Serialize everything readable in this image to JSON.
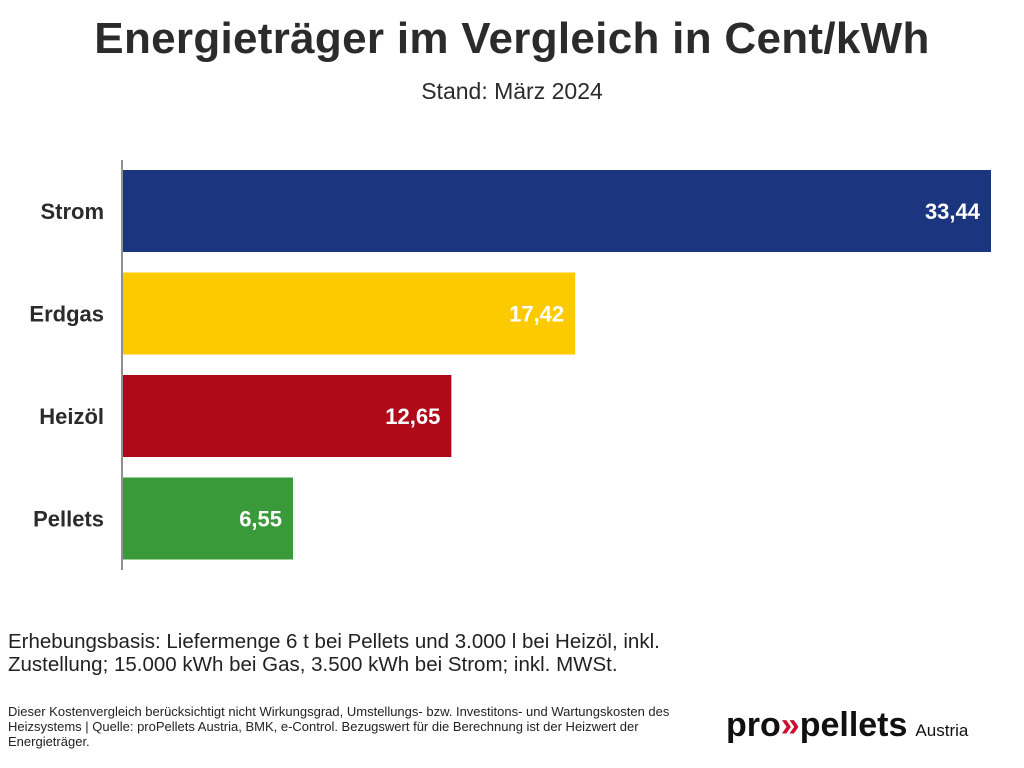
{
  "header": {
    "title": "Energieträger im Vergleich in Cent/kWh",
    "subtitle": "Stand: März 2024"
  },
  "chart_data": {
    "type": "bar",
    "orientation": "horizontal",
    "title": "Energieträger im Vergleich in Cent/kWh",
    "subtitle": "Stand: März 2024",
    "categories": [
      "Strom",
      "Erdgas",
      "Heizöl",
      "Pellets"
    ],
    "values": [
      33.44,
      17.42,
      12.65,
      6.55
    ],
    "value_labels": [
      "33,44",
      "17,42",
      "12,65",
      "6,55"
    ],
    "colors": [
      "#1b357e",
      "#fdca00",
      "#b00a18",
      "#3a9a3a"
    ],
    "unit": "Cent/kWh",
    "xlim": [
      0,
      33.44
    ],
    "grid": false,
    "legend": "none"
  },
  "footnotes": {
    "main": "Erhebungsbasis: Liefermenge 6 t bei Pellets und 3.000 l bei Heizöl, inkl. Zustellung; 15.000 kWh bei Gas, 3.500 kWh bei Strom; inkl. MWSt.",
    "small": "Dieser Kostenvergleich berücksichtigt nicht Wirkungsgrad, Umstellungs- bzw. Investitons- und Wartungskosten des Heizsystems | Quelle: proPellets Austria, BMK, e-Control. Bezugswert für die Berechnung ist der Heizwert der Energieträger."
  },
  "logo": {
    "prefix": "pro",
    "chevrons": "»",
    "name": "pellets",
    "country": "Austria"
  }
}
